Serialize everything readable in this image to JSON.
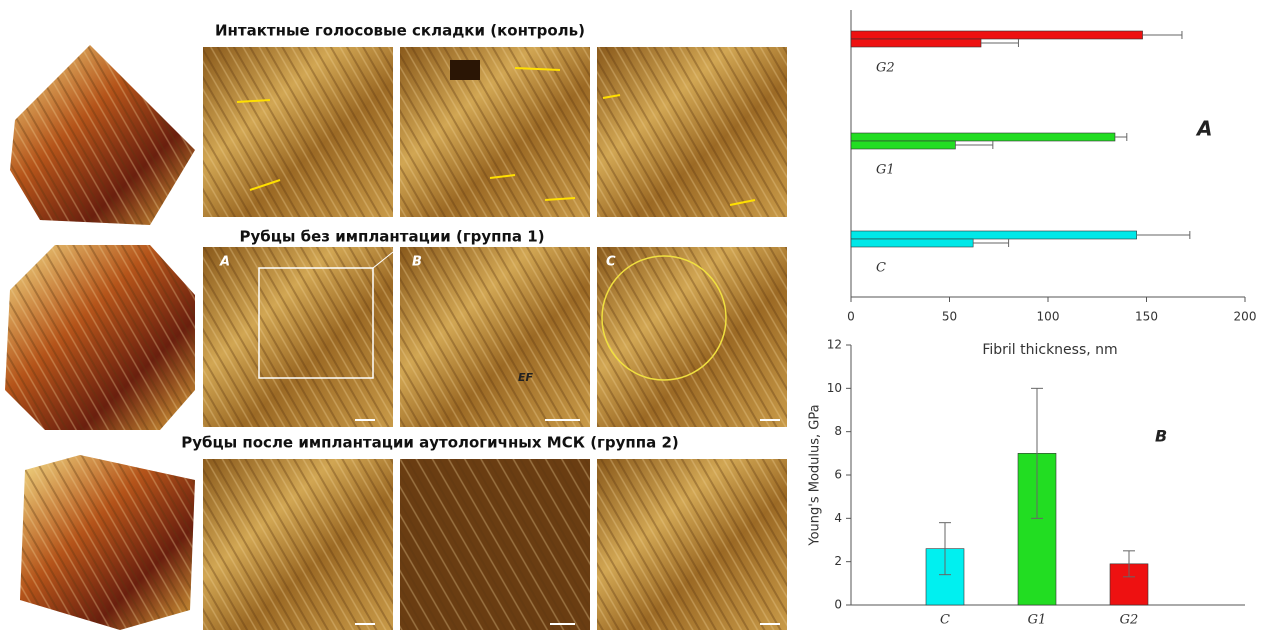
{
  "panels": {
    "row_titles": [
      "Интактные голосовые складки (контроль)",
      "Рубцы без имплантации (группа 1)",
      "Рубцы после имплантации аутологичных  МСК (группа 2)"
    ],
    "image_labels": [
      "A",
      "B",
      "C"
    ],
    "ef_label": "EF"
  },
  "chart_data": [
    {
      "type": "hbar",
      "annotation": "A",
      "x_label": "Fibril thickness, nm",
      "categories": [
        "C",
        "G1",
        "G2"
      ],
      "colors": [
        "#00e8e8",
        "#22dd22",
        "#ee1111"
      ],
      "series": [
        {
          "values": [
            145,
            134,
            148
          ],
          "errors": [
            27,
            6,
            20
          ]
        },
        {
          "values": [
            62,
            53,
            66
          ],
          "errors": [
            18,
            19,
            19
          ]
        }
      ],
      "xlim": [
        0,
        200
      ],
      "xticks": [
        0,
        50,
        100,
        150,
        200
      ]
    },
    {
      "type": "bar",
      "annotation": "B",
      "y_label": "Young's Modulus, GPa",
      "categories": [
        "C",
        "G1",
        "G2"
      ],
      "colors": [
        "#00f0f0",
        "#22dd22",
        "#ee1111"
      ],
      "values": [
        2.6,
        7.0,
        1.9
      ],
      "errors": [
        1.2,
        3.0,
        0.6
      ],
      "ylim": [
        0,
        12
      ],
      "yticks": [
        0,
        2,
        4,
        6,
        8,
        10,
        12
      ]
    }
  ]
}
